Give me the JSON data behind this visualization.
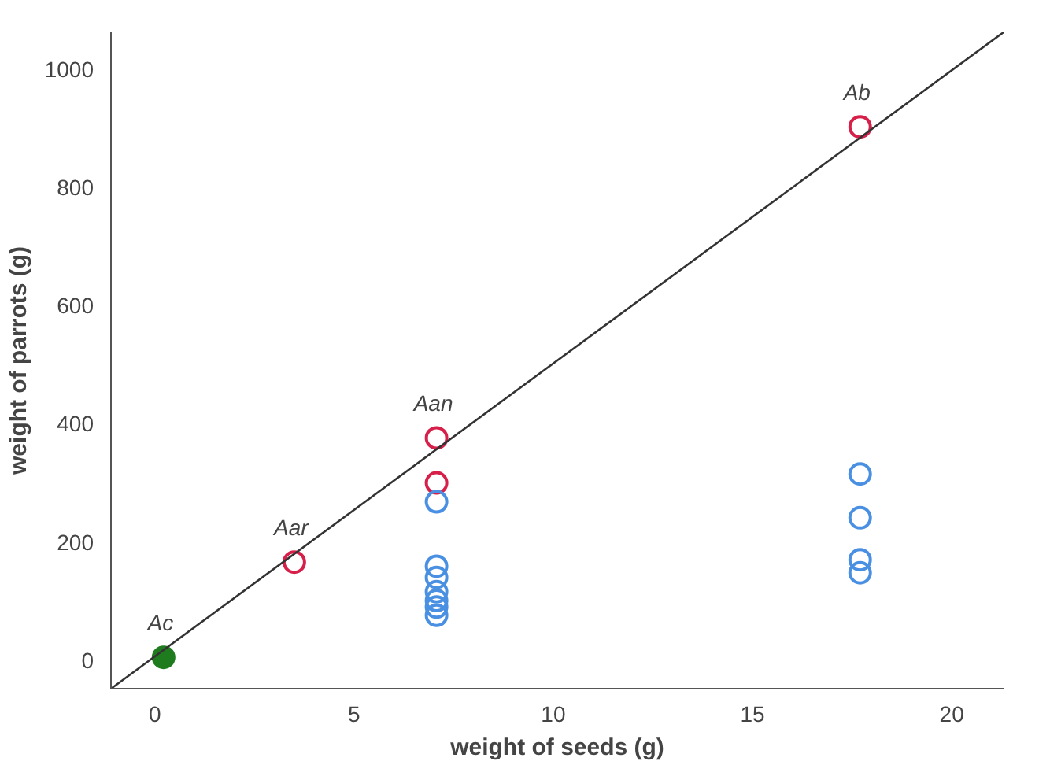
{
  "chart_data": {
    "type": "scatter",
    "xlabel": "weight of seeds (g)",
    "ylabel": "weight of parrots (g)",
    "xlim": [
      -1.1,
      21.3
    ],
    "ylim": [
      -48,
      1062
    ],
    "xticks": [
      0,
      5,
      10,
      15,
      20
    ],
    "yticks": [
      0,
      200,
      400,
      600,
      800,
      1000
    ],
    "grid": false,
    "marker": "circle",
    "series": [
      {
        "color": "#1e7b1e",
        "x": [
          0.22
        ],
        "values": [
          5
        ]
      },
      {
        "color": "#d6204a",
        "x": [
          3.5,
          7.07,
          7.07,
          17.7
        ],
        "values": [
          166,
          376,
          300,
          902
        ]
      },
      {
        "color": "#4a90e2",
        "x": [
          7.07,
          7.07,
          7.07,
          7.07,
          7.07,
          7.07,
          7.07,
          17.7,
          17.7,
          17.7,
          17.7
        ],
        "values": [
          268,
          159,
          140,
          116,
          101,
          90,
          76,
          315,
          241,
          170,
          148
        ]
      },
      {
        "type": "line",
        "marker": "none",
        "color": "#333333",
        "x": [
          -1.1,
          21.3
        ],
        "values": [
          -48,
          1062
        ]
      }
    ],
    "annotations": [
      {
        "text": "Ac",
        "x": 0.22,
        "y": 5
      },
      {
        "text": "Aar",
        "x": 3.5,
        "y": 166
      },
      {
        "text": "Aan",
        "x": 7.07,
        "y": 376
      },
      {
        "text": "Ab",
        "x": 17.7,
        "y": 902
      }
    ]
  }
}
